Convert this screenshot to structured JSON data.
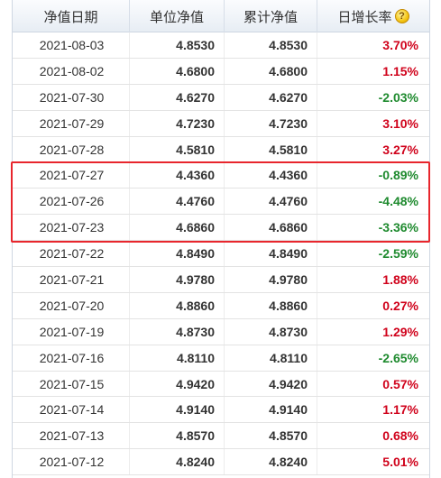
{
  "header": {
    "date": "净值日期",
    "unit_nav": "单位净值",
    "acc_nav": "累计净值",
    "growth": "日增长率",
    "help_glyph": "?"
  },
  "colors": {
    "up": "#d0021b",
    "down": "#1e8a2e",
    "highlight": "#e8262d"
  },
  "rows": [
    {
      "date": "2021-08-03",
      "unit": "4.8530",
      "acc": "4.8530",
      "rate": "3.70%",
      "dir": "up"
    },
    {
      "date": "2021-08-02",
      "unit": "4.6800",
      "acc": "4.6800",
      "rate": "1.15%",
      "dir": "up"
    },
    {
      "date": "2021-07-30",
      "unit": "4.6270",
      "acc": "4.6270",
      "rate": "-2.03%",
      "dir": "down"
    },
    {
      "date": "2021-07-29",
      "unit": "4.7230",
      "acc": "4.7230",
      "rate": "3.10%",
      "dir": "up"
    },
    {
      "date": "2021-07-28",
      "unit": "4.5810",
      "acc": "4.5810",
      "rate": "3.27%",
      "dir": "up"
    },
    {
      "date": "2021-07-27",
      "unit": "4.4360",
      "acc": "4.4360",
      "rate": "-0.89%",
      "dir": "down"
    },
    {
      "date": "2021-07-26",
      "unit": "4.4760",
      "acc": "4.4760",
      "rate": "-4.48%",
      "dir": "down"
    },
    {
      "date": "2021-07-23",
      "unit": "4.6860",
      "acc": "4.6860",
      "rate": "-3.36%",
      "dir": "down"
    },
    {
      "date": "2021-07-22",
      "unit": "4.8490",
      "acc": "4.8490",
      "rate": "-2.59%",
      "dir": "down"
    },
    {
      "date": "2021-07-21",
      "unit": "4.9780",
      "acc": "4.9780",
      "rate": "1.88%",
      "dir": "up"
    },
    {
      "date": "2021-07-20",
      "unit": "4.8860",
      "acc": "4.8860",
      "rate": "0.27%",
      "dir": "up"
    },
    {
      "date": "2021-07-19",
      "unit": "4.8730",
      "acc": "4.8730",
      "rate": "1.29%",
      "dir": "up"
    },
    {
      "date": "2021-07-16",
      "unit": "4.8110",
      "acc": "4.8110",
      "rate": "-2.65%",
      "dir": "down"
    },
    {
      "date": "2021-07-15",
      "unit": "4.9420",
      "acc": "4.9420",
      "rate": "0.57%",
      "dir": "up"
    },
    {
      "date": "2021-07-14",
      "unit": "4.9140",
      "acc": "4.9140",
      "rate": "1.17%",
      "dir": "up"
    },
    {
      "date": "2021-07-13",
      "unit": "4.8570",
      "acc": "4.8570",
      "rate": "0.68%",
      "dir": "up"
    },
    {
      "date": "2021-07-12",
      "unit": "4.8240",
      "acc": "4.8240",
      "rate": "5.01%",
      "dir": "up"
    }
  ]
}
